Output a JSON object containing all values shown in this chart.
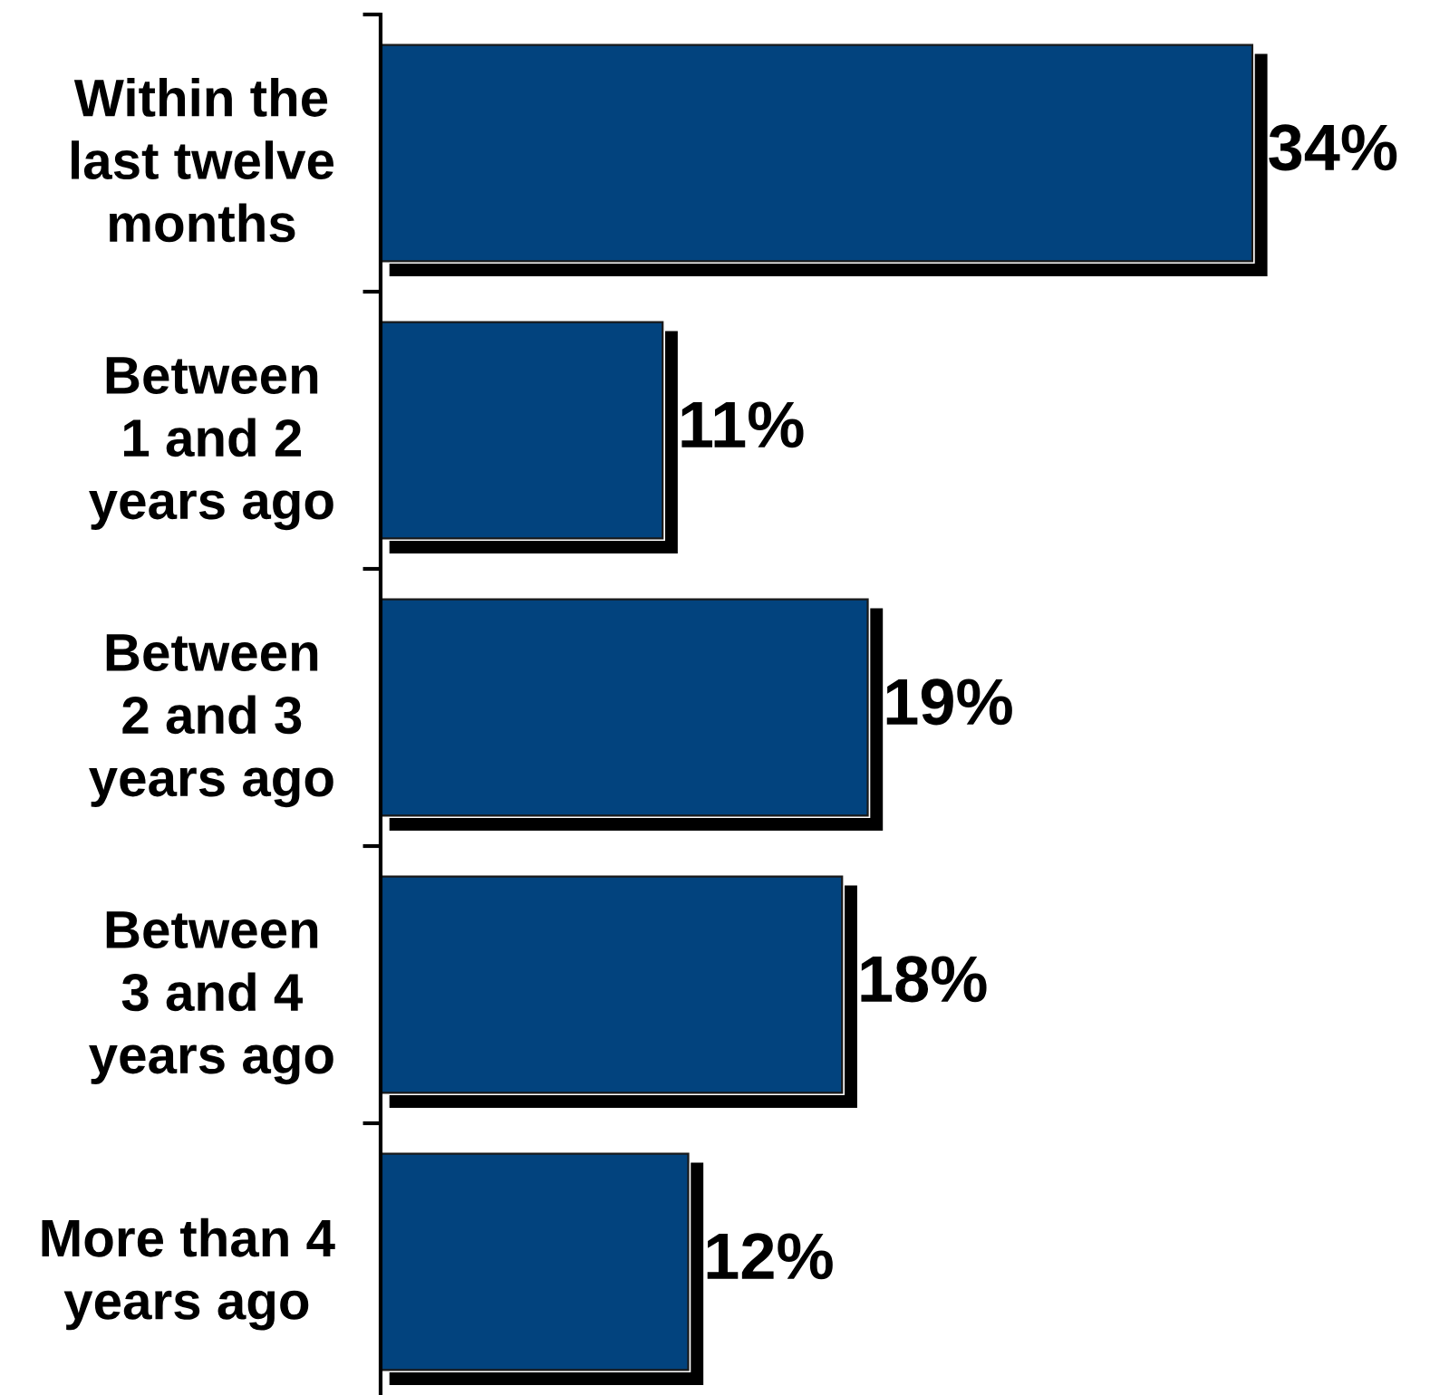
{
  "chart_data": {
    "type": "bar",
    "orientation": "horizontal",
    "tick_labels": "y",
    "categories": [
      "Within the\nlast twelve\nmonths",
      "Between\n1 and 2\nyears ago",
      "Between\n2 and 3\nyears ago",
      "Between\n3 and 4\nyears ago",
      "More than 4\nyears ago"
    ],
    "series": [
      {
        "color": "#02437e",
        "values": [
          34,
          11,
          19,
          18,
          12
        ],
        "value_labels": [
          "34%",
          "11%",
          "19%",
          "18%",
          "12%"
        ]
      }
    ]
  }
}
